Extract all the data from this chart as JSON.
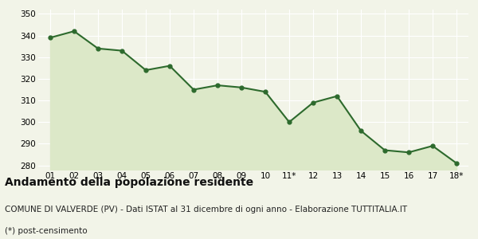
{
  "x_labels": [
    "01",
    "02",
    "03",
    "04",
    "05",
    "06",
    "07",
    "08",
    "09",
    "10",
    "11*",
    "12",
    "13",
    "14",
    "15",
    "16",
    "17",
    "18*"
  ],
  "y_values": [
    339,
    342,
    334,
    333,
    324,
    326,
    315,
    317,
    316,
    314,
    300,
    309,
    312,
    296,
    287,
    286,
    289,
    281
  ],
  "line_color": "#2d6a2d",
  "fill_color": "#dce8c8",
  "marker": "o",
  "marker_size": 3.5,
  "line_width": 1.5,
  "ylim": [
    278,
    352
  ],
  "yticks": [
    280,
    290,
    300,
    310,
    320,
    330,
    340,
    350
  ],
  "background_color": "#f2f4e8",
  "grid_color": "#ffffff",
  "title": "Andamento della popolazione residente",
  "subtitle": "COMUNE DI VALVERDE (PV) - Dati ISTAT al 31 dicembre di ogni anno - Elaborazione TUTTITALIA.IT",
  "footnote": "(*) post-censimento",
  "title_fontsize": 10,
  "subtitle_fontsize": 7.5,
  "footnote_fontsize": 7.5,
  "tick_fontsize": 7.5
}
